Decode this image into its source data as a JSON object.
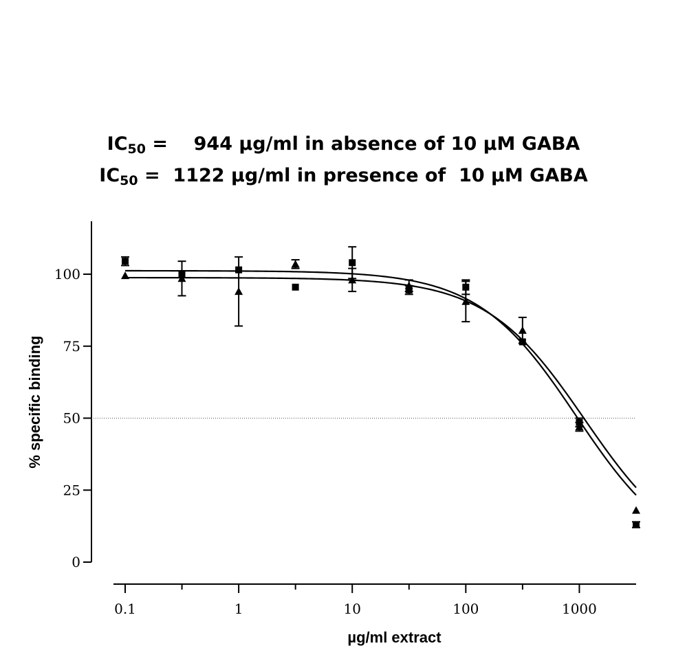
{
  "annotations": {
    "line1": {
      "prefix": "IC",
      "subscript": "50",
      "text": " =    944 µg/ml in absence of 10 µM GABA"
    },
    "line2": {
      "prefix": "IC",
      "subscript": "50",
      "text": " =  1122 µg/ml in presence of  10 µM GABA"
    }
  },
  "chart_data": {
    "type": "scatter",
    "title": "",
    "xlabel": "µg/ml extract",
    "ylabel": "% specific binding",
    "xscale": "log",
    "xlim": [
      0.1,
      3162
    ],
    "ylim": [
      0,
      112
    ],
    "xticks": [
      0.1,
      1,
      10,
      100,
      1000
    ],
    "xtick_labels": [
      "0.1",
      "1",
      "10",
      "100",
      "1000"
    ],
    "yticks": [
      0,
      25,
      50,
      75,
      100
    ],
    "ytick_labels": [
      "0",
      "25",
      "50",
      "75",
      "100"
    ],
    "reference_line": {
      "y": 50,
      "style": "dotted"
    },
    "grid": false,
    "legend": "none",
    "series": [
      {
        "marker": "square",
        "x": [
          0.1,
          0.316,
          1,
          3.16,
          10,
          31.6,
          100,
          316,
          1000,
          3162
        ],
        "y": [
          104.5,
          100,
          101.5,
          95.5,
          104,
          94.5,
          95.5,
          76.5,
          48.5,
          13
        ],
        "error": [
          1.5,
          0,
          0,
          0,
          5.5,
          1.5,
          2.5,
          0,
          1.5,
          1
        ],
        "fit": {
          "top": 101.2,
          "bottom": 0,
          "ic50": 944,
          "hill": 1.0
        }
      },
      {
        "marker": "triangle",
        "x": [
          0.1,
          0.316,
          1,
          3.16,
          10,
          31.6,
          100,
          316,
          1000,
          3162
        ],
        "y": [
          99.5,
          98.5,
          94,
          103.5,
          98,
          96,
          90.5,
          80.5,
          47,
          18
        ],
        "error": [
          0,
          6,
          12,
          1.5,
          4,
          2,
          7,
          4.5,
          1.5,
          0
        ],
        "fit": {
          "top": 98.8,
          "bottom": 0,
          "ic50": 1122,
          "hill": 1.0
        }
      }
    ]
  }
}
